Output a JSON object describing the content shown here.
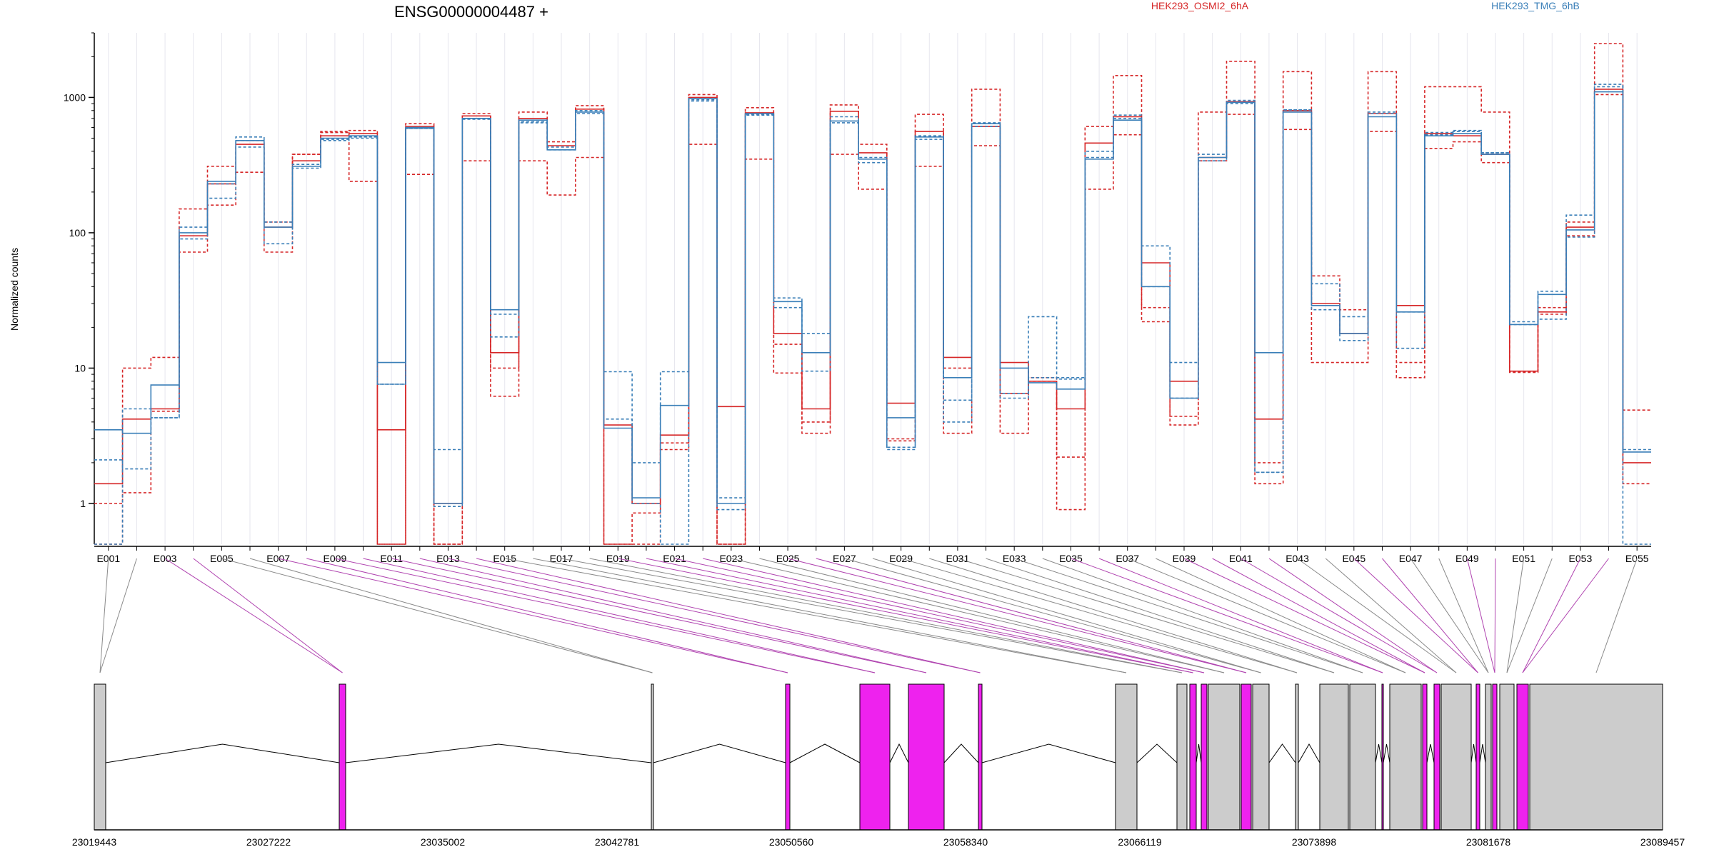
{
  "chart_data": {
    "type": "line",
    "title": "ENSG00000004487 +",
    "ylabel": "Normalized counts",
    "y_scale": "log10",
    "ylim": [
      0.5,
      3000
    ],
    "y_ticks": [
      1,
      10,
      100,
      1000
    ],
    "y_tick_labels": [
      "1",
      "10",
      "100",
      "1000"
    ],
    "categories": [
      "E001",
      "E002",
      "E003",
      "E004",
      "E005",
      "E006",
      "E007",
      "E008",
      "E009",
      "E010",
      "E011",
      "E012",
      "E013",
      "E014",
      "E015",
      "E016",
      "E017",
      "E018",
      "E019",
      "E020",
      "E021",
      "E022",
      "E023",
      "E024",
      "E025",
      "E026",
      "E027",
      "E028",
      "E029",
      "E030",
      "E031",
      "E032",
      "E033",
      "E034",
      "E035",
      "E036",
      "E037",
      "E038",
      "E039",
      "E040",
      "E041",
      "E042",
      "E043",
      "E044",
      "E045",
      "E046",
      "E047",
      "E048",
      "E049",
      "E050",
      "E051",
      "E052",
      "E053",
      "E054",
      "E055"
    ],
    "x_tick_labels": [
      "E001",
      "E003",
      "E005",
      "E007",
      "E009",
      "E011",
      "E013",
      "E015",
      "E017",
      "E019",
      "E021",
      "E023",
      "E025",
      "E027",
      "E029",
      "E031",
      "E033",
      "E035",
      "E037",
      "E039",
      "E041",
      "E043",
      "E045",
      "E047",
      "E049",
      "E051",
      "E053",
      "E055"
    ],
    "legend": [
      {
        "label": "HEK293_OSMI2_6hA",
        "color": "#d62728"
      },
      {
        "label": "HEK293_TMG_6hB",
        "color": "#3a7fb8"
      }
    ],
    "series": [
      {
        "group": "HEK293_OSMI2_6hA",
        "color": "#d62728",
        "dash": "solid",
        "values": [
          1.4,
          4.2,
          5.0,
          95,
          230,
          450,
          110,
          340,
          520,
          540,
          3.5,
          610,
          1.0,
          730,
          13,
          700,
          440,
          820,
          3.8,
          1.0,
          3.2,
          1000,
          5.2,
          770,
          18,
          5.0,
          790,
          390,
          5.5,
          560,
          12,
          610,
          11,
          8.0,
          5.0,
          460,
          720,
          60,
          8.0,
          360,
          930,
          4.2,
          800,
          30,
          18,
          760,
          29,
          540,
          520,
          380,
          9.5,
          26,
          110,
          1150,
          2.0
        ]
      },
      {
        "group": "HEK293_OSMI2_6hA",
        "color": "#d62728",
        "dash": "dashed",
        "values": [
          0.5,
          10,
          12,
          150,
          310,
          280,
          72,
          380,
          560,
          240,
          0.5,
          270,
          0.5,
          340,
          6.2,
          340,
          190,
          360,
          0.5,
          0.85,
          2.5,
          450,
          0.5,
          350,
          9.2,
          3.3,
          380,
          210,
          3.0,
          310,
          3.3,
          440,
          3.3,
          8.5,
          0.9,
          210,
          530,
          22,
          3.8,
          340,
          750,
          1.4,
          580,
          11,
          11,
          560,
          8.5,
          420,
          470,
          330,
          9.4,
          25,
          95,
          1050,
          1.4
        ]
      },
      {
        "group": "HEK293_OSMI2_6hA",
        "color": "#d62728",
        "dash": "dashed",
        "values": [
          1.0,
          1.2,
          4.8,
          72,
          160,
          480,
          120,
          380,
          550,
          570,
          0.5,
          640,
          0.5,
          760,
          10,
          780,
          470,
          870,
          0.5,
          0.5,
          2.8,
          1050,
          0.5,
          840,
          15,
          4.0,
          880,
          450,
          2.9,
          750,
          10,
          1150,
          6.5,
          8.0,
          2.2,
          610,
          1450,
          28,
          4.4,
          780,
          1850,
          2.0,
          1550,
          48,
          27,
          1550,
          11,
          1200,
          1200,
          780,
          9.3,
          28,
          120,
          2500,
          4.9
        ]
      },
      {
        "group": "HEK293_TMG_6hB",
        "color": "#3a7fb8",
        "dash": "solid",
        "values": [
          3.5,
          3.3,
          7.5,
          100,
          240,
          480,
          110,
          310,
          500,
          520,
          11,
          600,
          1.0,
          700,
          27,
          680,
          410,
          780,
          3.6,
          1.1,
          5.3,
          980,
          1.0,
          760,
          31,
          13,
          670,
          350,
          4.3,
          510,
          8.5,
          640,
          10,
          7.8,
          7.0,
          350,
          680,
          40,
          6.0,
          360,
          920,
          13,
          780,
          29,
          18,
          720,
          26,
          520,
          540,
          380,
          21,
          35,
          105,
          1100,
          2.4
        ]
      },
      {
        "group": "HEK293_TMG_6hB",
        "color": "#3a7fb8",
        "dash": "dashed",
        "values": [
          2.1,
          1.8,
          4.3,
          90,
          180,
          430,
          83,
          300,
          480,
          500,
          7.6,
          590,
          2.5,
          690,
          17,
          650,
          410,
          760,
          9.4,
          2.0,
          9.4,
          940,
          1.1,
          740,
          28,
          9.5,
          650,
          330,
          2.6,
          490,
          5.8,
          610,
          6.0,
          24,
          8.3,
          400,
          700,
          80,
          11,
          340,
          900,
          1.7,
          810,
          42,
          24,
          780,
          14,
          550,
          570,
          390,
          22,
          23,
          93,
          1200,
          0.5
        ]
      },
      {
        "group": "HEK293_TMG_6hB",
        "color": "#3a7fb8",
        "dash": "dashed",
        "values": [
          0.5,
          5.0,
          4.3,
          110,
          230,
          510,
          120,
          320,
          490,
          510,
          7.6,
          590,
          0.95,
          700,
          25,
          660,
          430,
          800,
          4.2,
          1.0,
          0.5,
          960,
          0.9,
          750,
          33,
          18,
          720,
          360,
          2.5,
          520,
          4.0,
          650,
          6.5,
          8.5,
          8.5,
          360,
          740,
          40,
          6.0,
          380,
          950,
          1.7,
          810,
          27,
          16,
          760,
          26,
          530,
          560,
          390,
          21,
          37,
          135,
          1250,
          2.5
        ]
      }
    ],
    "gene_model": {
      "x_tick_labels": [
        "23019443",
        "23027222",
        "23035002",
        "23042781",
        "23050560",
        "23058340",
        "23066119",
        "23073898",
        "23081678",
        "23089457"
      ]
    }
  }
}
